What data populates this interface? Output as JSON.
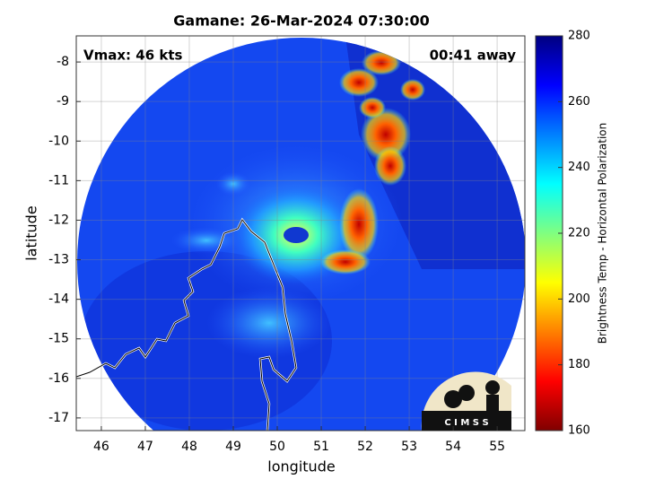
{
  "chart_data": {
    "type": "map",
    "title": "Gamane: 26-Mar-2024 07:30:00",
    "xlabel": "longitude",
    "ylabel": "latitude",
    "annotations": [
      "Vmax: 46 kts",
      "00:41 away"
    ],
    "logo": "C I M S S",
    "xlim": [
      45.43,
      55.63
    ],
    "ylim": [
      -17.32,
      -7.34
    ],
    "xticks": [
      46,
      47,
      48,
      49,
      50,
      51,
      52,
      53,
      54,
      55
    ],
    "yticks": [
      -8,
      -9,
      -10,
      -11,
      -12,
      -13,
      -14,
      -15,
      -16,
      -17
    ],
    "grid": true,
    "colorbar": {
      "label": "Brightness Temp - Horizontal Polarization",
      "clim": [
        160,
        280
      ],
      "ticks": [
        160,
        180,
        200,
        220,
        240,
        260,
        280
      ],
      "colormap": "jet"
    }
  }
}
